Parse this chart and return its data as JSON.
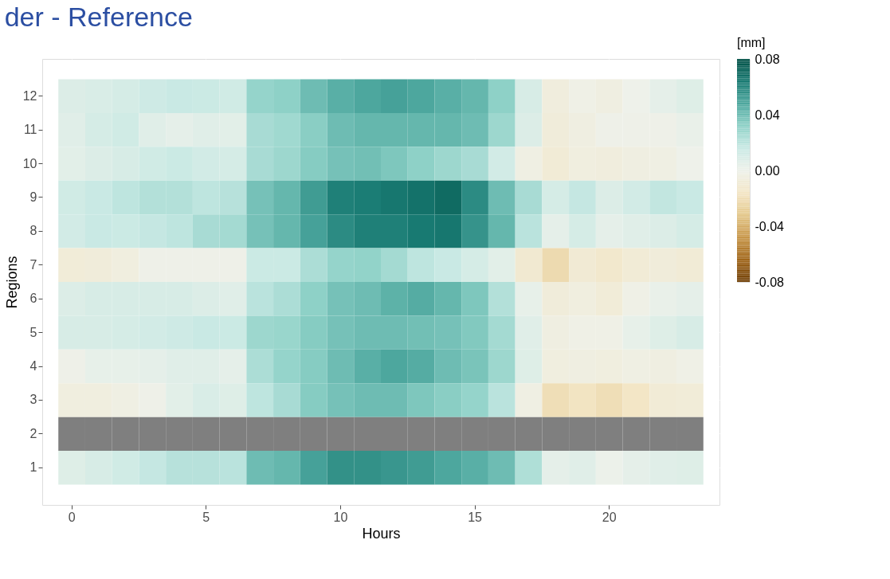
{
  "chart_data": {
    "type": "heatmap",
    "title": "der - Reference",
    "xlabel": "Hours",
    "ylabel": "Regions",
    "legend_title": "[mm]",
    "categories": [
      "0",
      null,
      null,
      null,
      null,
      "5",
      null,
      null,
      null,
      null,
      "10",
      null,
      null,
      null,
      null,
      "15",
      null,
      null,
      null,
      null,
      "20",
      null,
      null,
      null
    ],
    "y_categories": [
      "12",
      "11",
      "10",
      "9",
      "8",
      "7",
      "6",
      "5",
      "4",
      "3",
      "2",
      "1"
    ],
    "cells": [
      [
        0.008,
        0.009,
        0.011,
        0.014,
        0.016,
        0.015,
        0.013,
        0.03,
        0.032,
        0.04,
        0.045,
        0.048,
        0.05,
        0.048,
        0.045,
        0.042,
        0.032,
        0.01,
        -0.006,
        -0.002,
        -0.004,
        0.0,
        0.004,
        0.007
      ],
      [
        0.006,
        0.011,
        0.013,
        0.006,
        0.004,
        0.006,
        0.005,
        0.025,
        0.027,
        0.033,
        0.04,
        0.042,
        0.042,
        0.042,
        0.042,
        0.04,
        0.028,
        0.008,
        -0.007,
        -0.004,
        -0.001,
        -0.001,
        -0.001,
        0.002
      ],
      [
        0.005,
        0.008,
        0.01,
        0.013,
        0.015,
        0.012,
        0.011,
        0.025,
        0.028,
        0.034,
        0.038,
        0.039,
        0.036,
        0.032,
        0.028,
        0.025,
        0.012,
        -0.003,
        -0.009,
        -0.005,
        -0.006,
        -0.004,
        -0.003,
        0.0
      ],
      [
        0.013,
        0.016,
        0.019,
        0.022,
        0.022,
        0.019,
        0.021,
        0.038,
        0.042,
        0.052,
        0.062,
        0.063,
        0.065,
        0.067,
        0.07,
        0.058,
        0.04,
        0.025,
        0.011,
        0.017,
        0.008,
        0.012,
        0.018,
        0.016
      ],
      [
        0.012,
        0.016,
        0.015,
        0.017,
        0.019,
        0.025,
        0.026,
        0.038,
        0.042,
        0.05,
        0.058,
        0.062,
        0.062,
        0.064,
        0.065,
        0.055,
        0.042,
        0.02,
        0.004,
        0.011,
        0.004,
        0.006,
        0.008,
        0.011
      ],
      [
        -0.008,
        -0.007,
        -0.005,
        -0.001,
        -0.001,
        -0.001,
        -0.001,
        0.015,
        0.015,
        0.024,
        0.03,
        0.031,
        0.026,
        0.019,
        0.016,
        0.011,
        0.005,
        -0.011,
        -0.022,
        -0.01,
        -0.013,
        -0.009,
        -0.007,
        -0.009
      ],
      [
        0.008,
        0.01,
        0.01,
        0.01,
        0.01,
        0.008,
        0.006,
        0.02,
        0.024,
        0.032,
        0.038,
        0.04,
        0.044,
        0.046,
        0.042,
        0.036,
        0.022,
        0.003,
        -0.007,
        -0.005,
        -0.008,
        -0.002,
        0.002,
        0.004
      ],
      [
        0.01,
        0.01,
        0.011,
        0.012,
        0.014,
        0.016,
        0.015,
        0.028,
        0.029,
        0.034,
        0.038,
        0.04,
        0.04,
        0.039,
        0.038,
        0.035,
        0.026,
        0.006,
        -0.004,
        -0.002,
        -0.002,
        0.003,
        0.007,
        0.01
      ],
      [
        -0.001,
        0.003,
        0.003,
        0.004,
        0.006,
        0.006,
        0.004,
        0.024,
        0.03,
        0.034,
        0.04,
        0.045,
        0.048,
        0.046,
        0.04,
        0.037,
        0.028,
        0.007,
        -0.005,
        -0.004,
        -0.005,
        -0.003,
        -0.004,
        -0.002
      ],
      [
        -0.005,
        -0.005,
        -0.003,
        -0.001,
        0.005,
        0.009,
        0.007,
        0.019,
        0.025,
        0.034,
        0.038,
        0.04,
        0.04,
        0.036,
        0.033,
        0.03,
        0.02,
        -0.003,
        -0.02,
        -0.017,
        -0.02,
        -0.016,
        -0.009,
        -0.008
      ],
      [
        null,
        null,
        null,
        null,
        null,
        null,
        null,
        null,
        null,
        null,
        null,
        null,
        null,
        null,
        null,
        null,
        null,
        null,
        null,
        null,
        null,
        null,
        null,
        null
      ],
      [
        0.007,
        0.01,
        0.013,
        0.017,
        0.021,
        0.021,
        0.02,
        0.04,
        0.042,
        0.05,
        0.056,
        0.056,
        0.054,
        0.052,
        0.048,
        0.045,
        0.04,
        0.023,
        0.004,
        0.006,
        0.001,
        0.004,
        0.006,
        0.007
      ]
    ],
    "clim": [
      -0.08,
      0.08
    ],
    "cticks": [
      {
        "value": 0.08,
        "label": "0.08"
      },
      {
        "value": 0.04,
        "label": "0.04"
      },
      {
        "value": 0,
        "label": "0.00"
      },
      {
        "value": -0.04,
        "label": "-0.04"
      },
      {
        "value": -0.08,
        "label": "-0.08"
      }
    ],
    "grid": true
  }
}
